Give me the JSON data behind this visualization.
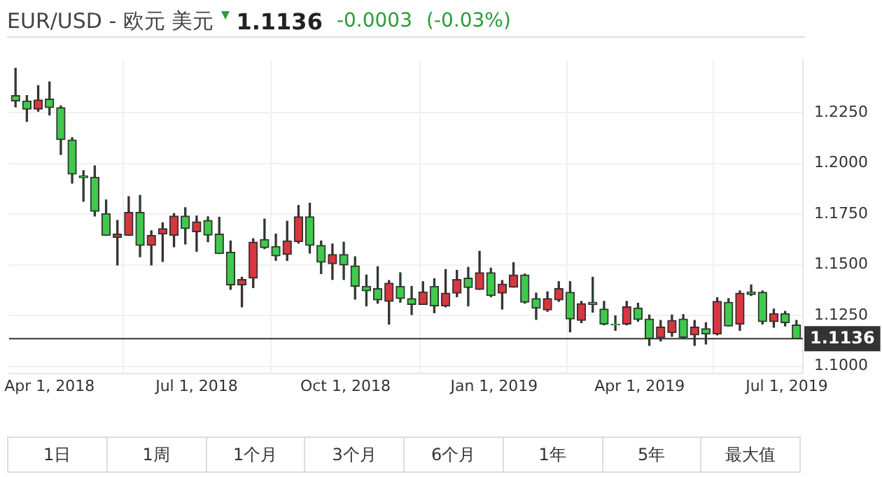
{
  "chart_data": {
    "type": "candlestick",
    "title": "EUR/USD - 欧元 美元",
    "annotations": [
      "1.1136",
      "-0.0003",
      "(-0.03%)",
      "1日",
      "1周",
      "1个月",
      "3个月",
      "6个月",
      "1年",
      "5年",
      "最大值"
    ],
    "x": [
      "2018-03-11",
      "2018-03-18",
      "2018-03-25",
      "2018-04-01",
      "2018-04-08",
      "2018-04-15",
      "2018-04-22",
      "2018-04-29",
      "2018-05-06",
      "2018-05-13",
      "2018-05-20",
      "2018-05-27",
      "2018-06-03",
      "2018-06-10",
      "2018-06-17",
      "2018-06-24",
      "2018-07-01",
      "2018-07-08",
      "2018-07-15",
      "2018-07-22",
      "2018-07-29",
      "2018-08-05",
      "2018-08-12",
      "2018-08-19",
      "2018-08-26",
      "2018-09-02",
      "2018-09-09",
      "2018-09-16",
      "2018-09-23",
      "2018-09-30",
      "2018-10-07",
      "2018-10-14",
      "2018-10-21",
      "2018-10-28",
      "2018-11-04",
      "2018-11-11",
      "2018-11-18",
      "2018-11-25",
      "2018-12-02",
      "2018-12-09",
      "2018-12-16",
      "2018-12-23",
      "2018-12-30",
      "2019-01-06",
      "2019-01-13",
      "2019-01-20",
      "2019-01-27",
      "2019-02-03",
      "2019-02-10",
      "2019-02-17",
      "2019-02-24",
      "2019-03-03",
      "2019-03-10",
      "2019-03-17",
      "2019-03-24",
      "2019-03-31",
      "2019-04-07",
      "2019-04-14",
      "2019-04-21",
      "2019-04-28",
      "2019-05-05",
      "2019-05-12",
      "2019-05-19",
      "2019-05-26",
      "2019-06-02",
      "2019-06-09",
      "2019-06-16",
      "2019-06-23",
      "2019-06-30",
      "2019-07-07"
    ],
    "ohlc": [
      [
        1.2335,
        1.2469,
        1.2279,
        1.2308
      ],
      [
        1.2308,
        1.2335,
        1.2207,
        1.2268
      ],
      [
        1.2268,
        1.2384,
        1.2257,
        1.2313
      ],
      [
        1.2317,
        1.2402,
        1.2239,
        1.2275
      ],
      [
        1.2275,
        1.2284,
        1.2044,
        1.2118
      ],
      [
        1.2116,
        1.2127,
        1.1903,
        1.1948
      ],
      [
        1.1939,
        1.1965,
        1.1813,
        1.193
      ],
      [
        1.1932,
        1.1988,
        1.1741,
        1.1764
      ],
      [
        1.1753,
        1.182,
        1.1645,
        1.1645
      ],
      [
        1.1636,
        1.1719,
        1.15,
        1.1652
      ],
      [
        1.1645,
        1.1836,
        1.1645,
        1.1759
      ],
      [
        1.1759,
        1.1842,
        1.154,
        1.1596
      ],
      [
        1.1596,
        1.1668,
        1.15,
        1.1645
      ],
      [
        1.1652,
        1.1708,
        1.1517,
        1.1679
      ],
      [
        1.1645,
        1.1753,
        1.1589,
        1.1741
      ],
      [
        1.1741,
        1.1782,
        1.1603,
        1.1679
      ],
      [
        1.1663,
        1.1741,
        1.1567,
        1.1712
      ],
      [
        1.1719,
        1.1737,
        1.1614,
        1.1647
      ],
      [
        1.1652,
        1.1735,
        1.1556,
        1.1556
      ],
      [
        1.1562,
        1.1618,
        1.1379,
        1.1401
      ],
      [
        1.1401,
        1.1439,
        1.1293,
        1.1428
      ],
      [
        1.1435,
        1.1629,
        1.1388,
        1.1612
      ],
      [
        1.1625,
        1.1726,
        1.158,
        1.1585
      ],
      [
        1.1591,
        1.1652,
        1.1522,
        1.1544
      ],
      [
        1.1551,
        1.1715,
        1.1522,
        1.1618
      ],
      [
        1.1614,
        1.1793,
        1.1607,
        1.1737
      ],
      [
        1.1737,
        1.1804,
        1.1558,
        1.1596
      ],
      [
        1.1596,
        1.1618,
        1.1457,
        1.1513
      ],
      [
        1.1506,
        1.1603,
        1.1428,
        1.1551
      ],
      [
        1.1551,
        1.1612,
        1.1428,
        1.15
      ],
      [
        1.1495,
        1.154,
        1.1331,
        1.1394
      ],
      [
        1.1394,
        1.145,
        1.1298,
        1.1372
      ],
      [
        1.1383,
        1.1491,
        1.1311,
        1.1327
      ],
      [
        1.132,
        1.1423,
        1.1208,
        1.141
      ],
      [
        1.1394,
        1.1461,
        1.1316,
        1.1334
      ],
      [
        1.1334,
        1.1394,
        1.1255,
        1.1305
      ],
      [
        1.1305,
        1.1417,
        1.1305,
        1.1367
      ],
      [
        1.1394,
        1.1432,
        1.1264,
        1.1298
      ],
      [
        1.1298,
        1.1477,
        1.1293,
        1.1361
      ],
      [
        1.1361,
        1.1473,
        1.1343,
        1.1428
      ],
      [
        1.1435,
        1.1488,
        1.1298,
        1.1388
      ],
      [
        1.1379,
        1.1567,
        1.1379,
        1.1461
      ],
      [
        1.1461,
        1.1484,
        1.1343,
        1.1349
      ],
      [
        1.1361,
        1.1423,
        1.1282,
        1.1405
      ],
      [
        1.139,
        1.1511,
        1.139,
        1.145
      ],
      [
        1.145,
        1.1455,
        1.1311,
        1.1316
      ],
      [
        1.1334,
        1.1361,
        1.1231,
        1.1287
      ],
      [
        1.1278,
        1.1367,
        1.1271,
        1.1334
      ],
      [
        1.1327,
        1.1417,
        1.132,
        1.1383
      ],
      [
        1.1365,
        1.1417,
        1.117,
        1.1233
      ],
      [
        1.1226,
        1.132,
        1.1215,
        1.1309
      ],
      [
        1.1316,
        1.1439,
        1.1267,
        1.1305
      ],
      [
        1.1282,
        1.132,
        1.1204,
        1.1208
      ],
      [
        1.1208,
        1.1249,
        1.1177,
        1.1204
      ],
      [
        1.1208,
        1.132,
        1.1204,
        1.1293
      ],
      [
        1.1287,
        1.1311,
        1.1222,
        1.1231
      ],
      [
        1.1233,
        1.1253,
        1.1103,
        1.1137
      ],
      [
        1.1141,
        1.1226,
        1.1125,
        1.1193
      ],
      [
        1.1166,
        1.1253,
        1.1148,
        1.1226
      ],
      [
        1.1233,
        1.1255,
        1.1137,
        1.1143
      ],
      [
        1.1155,
        1.1226,
        1.1103,
        1.1193
      ],
      [
        1.1186,
        1.1215,
        1.111,
        1.1159
      ],
      [
        1.1159,
        1.1338,
        1.1155,
        1.132
      ],
      [
        1.1316,
        1.1334,
        1.1199,
        1.1199
      ],
      [
        1.1208,
        1.1372,
        1.1177,
        1.1361
      ],
      [
        1.1367,
        1.1401,
        1.1349,
        1.1354
      ],
      [
        1.1365,
        1.1372,
        1.1208,
        1.122
      ],
      [
        1.122,
        1.1282,
        1.1193,
        1.126
      ],
      [
        1.126,
        1.1271,
        1.1199,
        1.1215
      ],
      [
        1.1204,
        1.1226,
        1.1136,
        1.1136
      ]
    ],
    "xlim": [
      "2018-03-07",
      "2019-07-11"
    ],
    "xticks": [
      {
        "value": "2018-04-01",
        "label": "Apr 1, 2018"
      },
      {
        "value": "2018-07-01",
        "label": "Jul 1, 2018"
      },
      {
        "value": "2018-10-01",
        "label": "Oct 1, 2018"
      },
      {
        "value": "2019-01-01",
        "label": "Jan 1, 2019"
      },
      {
        "value": "2019-04-01",
        "label": "Apr 1, 2019"
      },
      {
        "value": "2019-07-01",
        "label": "Jul 1, 2019"
      }
    ],
    "ylim": [
      1.0966,
      1.2512
    ],
    "yticks": [
      {
        "value": 1.1,
        "label": "1.1000"
      },
      {
        "value": 1.125,
        "label": "1.1250"
      },
      {
        "value": 1.15,
        "label": "1.1500"
      },
      {
        "value": 1.175,
        "label": "1.1750"
      },
      {
        "value": 1.2,
        "label": "1.2000"
      },
      {
        "value": 1.225,
        "label": "1.2250"
      }
    ],
    "ref_lines": [
      {
        "axis": "y",
        "value": 1.1136,
        "label": "1.1136",
        "color": "#333333"
      }
    ],
    "grid": true,
    "legend": false
  }
}
